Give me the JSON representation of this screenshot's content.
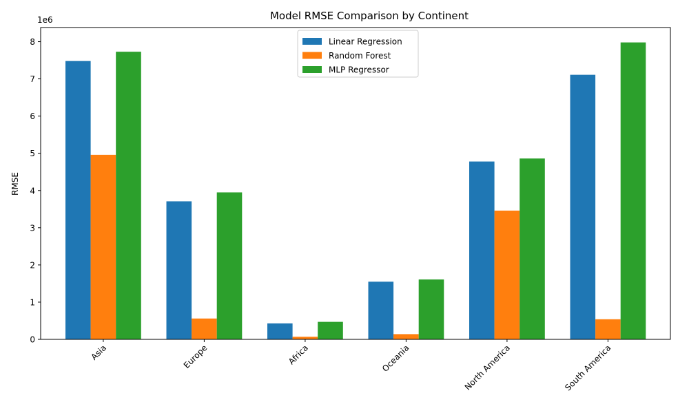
{
  "chart_data": {
    "type": "bar",
    "title": "Model RMSE Comparison by Continent",
    "xlabel": "",
    "ylabel": "RMSE",
    "offset_text": "1e6",
    "ylim": [
      0,
      8.38
    ],
    "yticks": [
      0,
      1,
      2,
      3,
      4,
      5,
      6,
      7,
      8
    ],
    "ytick_labels": [
      "0",
      "1",
      "2",
      "3",
      "4",
      "5",
      "6",
      "7",
      "8"
    ],
    "categories": [
      "Asia",
      "Europe",
      "Africa",
      "Oceania",
      "North America",
      "South America"
    ],
    "series": [
      {
        "name": "Linear Regression",
        "color": "#1f77b4",
        "values": [
          7.48,
          3.71,
          0.43,
          1.55,
          4.78,
          7.11
        ]
      },
      {
        "name": "Random Forest",
        "color": "#ff7f0e",
        "values": [
          4.96,
          0.56,
          0.07,
          0.14,
          3.46,
          0.54
        ]
      },
      {
        "name": "MLP Regressor",
        "color": "#2ca02c",
        "values": [
          7.73,
          3.95,
          0.47,
          1.61,
          4.86,
          7.98
        ]
      }
    ],
    "legend_position": "top-center",
    "grid": false
  }
}
